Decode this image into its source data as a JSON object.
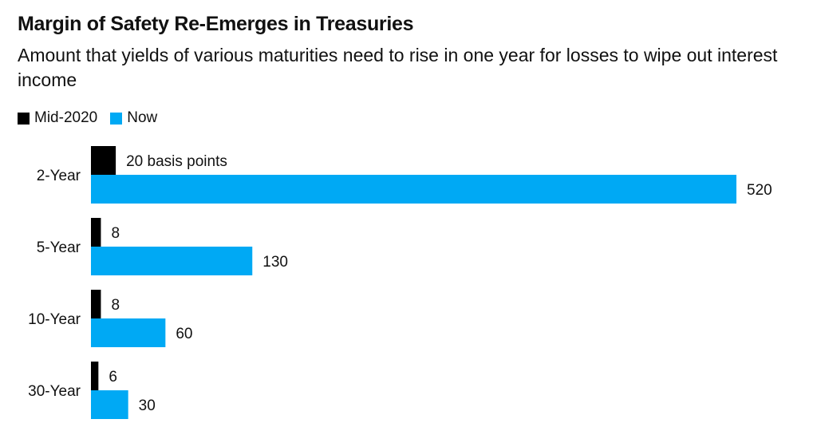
{
  "chart_data": {
    "type": "bar",
    "orientation": "horizontal",
    "title": "Margin of Safety Re-Emerges in Treasuries",
    "subtitle": "Amount that yields of various maturities need to rise in one year for losses to wipe out interest income",
    "xlabel": "",
    "ylabel": "",
    "unit": "basis points",
    "categories": [
      "2-Year",
      "5-Year",
      "10-Year",
      "30-Year"
    ],
    "series": [
      {
        "name": "Mid-2020",
        "color": "#000000",
        "values": [
          20,
          8,
          8,
          6
        ],
        "labels": [
          "20 basis points",
          "8",
          "8",
          "6"
        ]
      },
      {
        "name": "Now",
        "color": "#00a9f4",
        "values": [
          520,
          130,
          60,
          30
        ],
        "labels": [
          "520",
          "130",
          "60",
          "30"
        ]
      }
    ],
    "xlim": [
      0,
      520
    ],
    "grid": false,
    "legend_position": "top-left"
  }
}
